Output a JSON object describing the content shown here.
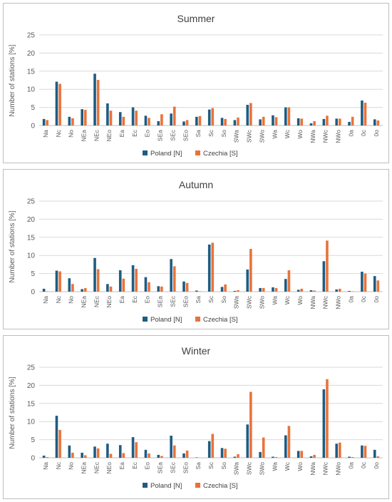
{
  "colors": {
    "poland": "#1f5c82",
    "czechia": "#e8733a",
    "grid": "#d9d9d9",
    "axis": "#bfbfbf"
  },
  "chart_data": [
    {
      "type": "bar",
      "title": "Summer",
      "ylabel": "Number of stations [%]",
      "ylim": [
        0,
        25
      ],
      "yticks": [
        "0",
        "5",
        "10",
        "15",
        "20",
        "25"
      ],
      "grid": true,
      "legend_position": "bottom",
      "categories": [
        "Na",
        "Nc",
        "No",
        "NEa",
        "NEc",
        "NEo",
        "Ea",
        "Ec",
        "Eo",
        "SEa",
        "SEc",
        "SEo",
        "Sa",
        "Sc",
        "So",
        "SWa",
        "SWc",
        "SWo",
        "Wa",
        "Wc",
        "Wo",
        "NWa",
        "NWc",
        "NWo",
        "0a",
        "0c",
        "0o"
      ],
      "series": [
        {
          "name": "Poland [N]",
          "values": [
            1.8,
            12.1,
            2.4,
            4.5,
            14.3,
            6.1,
            3.7,
            5.0,
            2.7,
            1.2,
            3.3,
            1.1,
            2.4,
            4.4,
            2.1,
            1.5,
            5.7,
            1.7,
            2.8,
            5.0,
            2.0,
            0.6,
            1.8,
            1.9,
            1.0,
            6.9,
            1.7
          ]
        },
        {
          "name": "Czechia [S]",
          "values": [
            1.5,
            11.5,
            2.0,
            4.3,
            12.6,
            4.1,
            2.4,
            4.1,
            2.1,
            3.1,
            5.2,
            1.5,
            2.6,
            4.8,
            1.8,
            2.2,
            6.2,
            2.4,
            2.3,
            5.0,
            1.9,
            1.2,
            2.7,
            1.9,
            2.4,
            6.3,
            1.4
          ]
        }
      ]
    },
    {
      "type": "bar",
      "title": "Autumn",
      "ylabel": "Number of stations [%]",
      "ylim": [
        0,
        25
      ],
      "yticks": [
        "0",
        "5",
        "10",
        "15",
        "20",
        "25"
      ],
      "grid": true,
      "legend_position": "bottom",
      "categories": [
        "Na",
        "Nc",
        "No",
        "NEa",
        "NEc",
        "NEo",
        "Ea",
        "Ec",
        "Eo",
        "SEa",
        "SEc",
        "SEo",
        "Sa",
        "Sc",
        "So",
        "SWa",
        "SWc",
        "SWo",
        "Wa",
        "Wc",
        "Wo",
        "NWa",
        "NWc",
        "NWo",
        "0a",
        "0c",
        "0o"
      ],
      "series": [
        {
          "name": "Poland [N]",
          "values": [
            0.8,
            5.8,
            3.7,
            0.7,
            9.3,
            2.1,
            5.9,
            7.3,
            4.0,
            1.5,
            9.0,
            2.8,
            0.3,
            13.0,
            1.3,
            0.2,
            6.1,
            1.0,
            1.2,
            3.5,
            0.5,
            0.4,
            8.4,
            0.6,
            0.2,
            5.5,
            4.3
          ]
        },
        {
          "name": "Czechia [S]",
          "values": [
            0.1,
            5.6,
            2.1,
            1.0,
            6.2,
            1.4,
            3.6,
            6.3,
            2.6,
            1.4,
            7.0,
            2.4,
            0.1,
            13.5,
            2.0,
            0.4,
            11.8,
            1.0,
            1.0,
            5.9,
            0.8,
            0.3,
            14.1,
            0.8,
            0.1,
            5.0,
            3.1
          ]
        }
      ]
    },
    {
      "type": "bar",
      "title": "Winter",
      "ylabel": "Number of stations [%]",
      "ylim": [
        0,
        25
      ],
      "yticks": [
        "0",
        "5",
        "10",
        "15",
        "20",
        "25"
      ],
      "grid": true,
      "legend_position": "bottom",
      "categories": [
        "Na",
        "Nc",
        "No",
        "NEa",
        "NEc",
        "NEo",
        "Ea",
        "Ec",
        "Eo",
        "SEa",
        "SEc",
        "SEo",
        "Sa",
        "Sc",
        "So",
        "SWa",
        "SWc",
        "SWo",
        "Wa",
        "Wc",
        "Wo",
        "NWa",
        "NWc",
        "NWo",
        "0a",
        "0c",
        "0o"
      ],
      "series": [
        {
          "name": "Poland [N]",
          "values": [
            0.6,
            11.6,
            3.4,
            1.4,
            3.1,
            3.9,
            3.5,
            5.7,
            2.2,
            0.8,
            6.1,
            1.2,
            0.1,
            4.6,
            2.7,
            0.3,
            9.2,
            1.6,
            0.3,
            6.2,
            1.9,
            0.4,
            18.9,
            3.9,
            0.3,
            3.4,
            2.2
          ]
        },
        {
          "name": "Czechia [S]",
          "values": [
            0.2,
            7.7,
            1.4,
            0.7,
            2.6,
            1.1,
            1.3,
            4.3,
            1.2,
            0.5,
            3.4,
            2.0,
            0.0,
            6.6,
            2.5,
            1.0,
            18.2,
            5.6,
            0.2,
            8.8,
            1.9,
            0.8,
            21.7,
            4.2,
            0.2,
            3.3,
            0.4
          ]
        }
      ]
    }
  ]
}
